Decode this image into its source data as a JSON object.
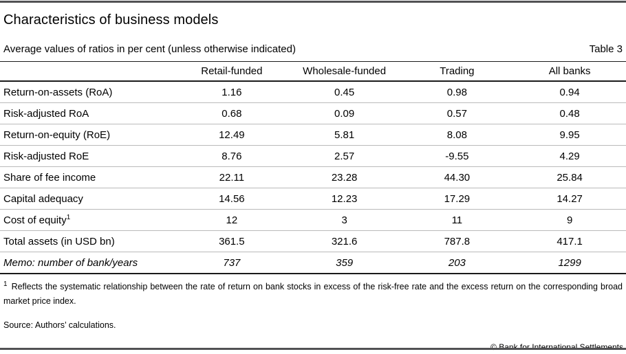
{
  "header": {
    "title": "Characteristics of business models",
    "subtitle": "Average values of ratios in per cent (unless otherwise indicated)",
    "table_tag": "Table 3"
  },
  "table": {
    "columns": [
      "",
      "Retail-funded",
      "Wholesale-funded",
      "Trading",
      "All banks"
    ],
    "rows": [
      {
        "label": "Return-on-assets (RoA)",
        "values": [
          "1.16",
          "0.45",
          "0.98",
          "0.94"
        ]
      },
      {
        "label": "Risk-adjusted RoA",
        "values": [
          "0.68",
          "0.09",
          "0.57",
          "0.48"
        ]
      },
      {
        "label": "Return-on-equity (RoE)",
        "values": [
          "12.49",
          "5.81",
          "8.08",
          "9.95"
        ]
      },
      {
        "label": "Risk-adjusted RoE",
        "values": [
          "8.76",
          "2.57",
          "-9.55",
          "4.29"
        ]
      },
      {
        "label": "Share of fee income",
        "values": [
          "22.11",
          "23.28",
          "44.30",
          "25.84"
        ]
      },
      {
        "label": "Capital adequacy",
        "values": [
          "14.56",
          "12.23",
          "17.29",
          "14.27"
        ]
      },
      {
        "label": "Cost of equity",
        "label_sup": "1",
        "values": [
          "12",
          "3",
          "11",
          "9"
        ]
      },
      {
        "label": "Total assets (in USD bn)",
        "values": [
          "361.5",
          "321.6",
          "787.8",
          "417.1"
        ]
      },
      {
        "label": "Memo: number of bank/years",
        "italic": true,
        "values": [
          "737",
          "359",
          "203",
          "1299"
        ]
      }
    ]
  },
  "footnotes": {
    "footnote_1_marker": "1",
    "footnote_1_text": "Reflects the systematic relationship between the rate of return on bank stocks in excess of the risk-free rate and the excess return on the corresponding broad market price index.",
    "source": "Source: Authors’ calculations.",
    "copyright": "© Bank for International Settlements"
  },
  "colors": {
    "rule_dark": "#1a1a1a",
    "rule_light": "#bababa",
    "page_bar": "#515153",
    "text": "#000000"
  }
}
